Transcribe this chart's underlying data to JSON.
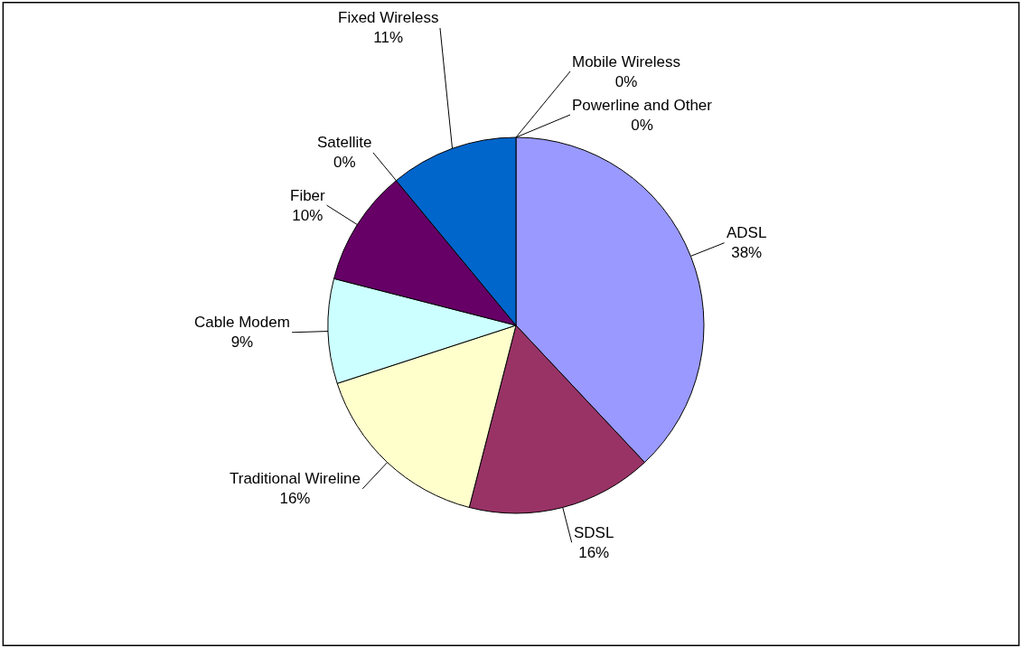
{
  "chart_data": {
    "type": "pie",
    "categories": [
      "ADSL",
      "SDSL",
      "Traditional Wireline",
      "Cable Modem",
      "Fiber",
      "Satellite",
      "Fixed Wireless",
      "Mobile Wireless",
      "Powerline and Other"
    ],
    "values": [
      38,
      16,
      16,
      9,
      10,
      0,
      11,
      0,
      0
    ],
    "value_labels": [
      "38%",
      "16%",
      "16%",
      "9%",
      "10%",
      "0%",
      "11%",
      "0%",
      "0%"
    ],
    "colors": [
      "#9999ff",
      "#993366",
      "#ffffcc",
      "#ccffff",
      "#660066",
      "#ff8080",
      "#0066cc",
      "#ccccff",
      "#000080"
    ],
    "legend": false
  }
}
